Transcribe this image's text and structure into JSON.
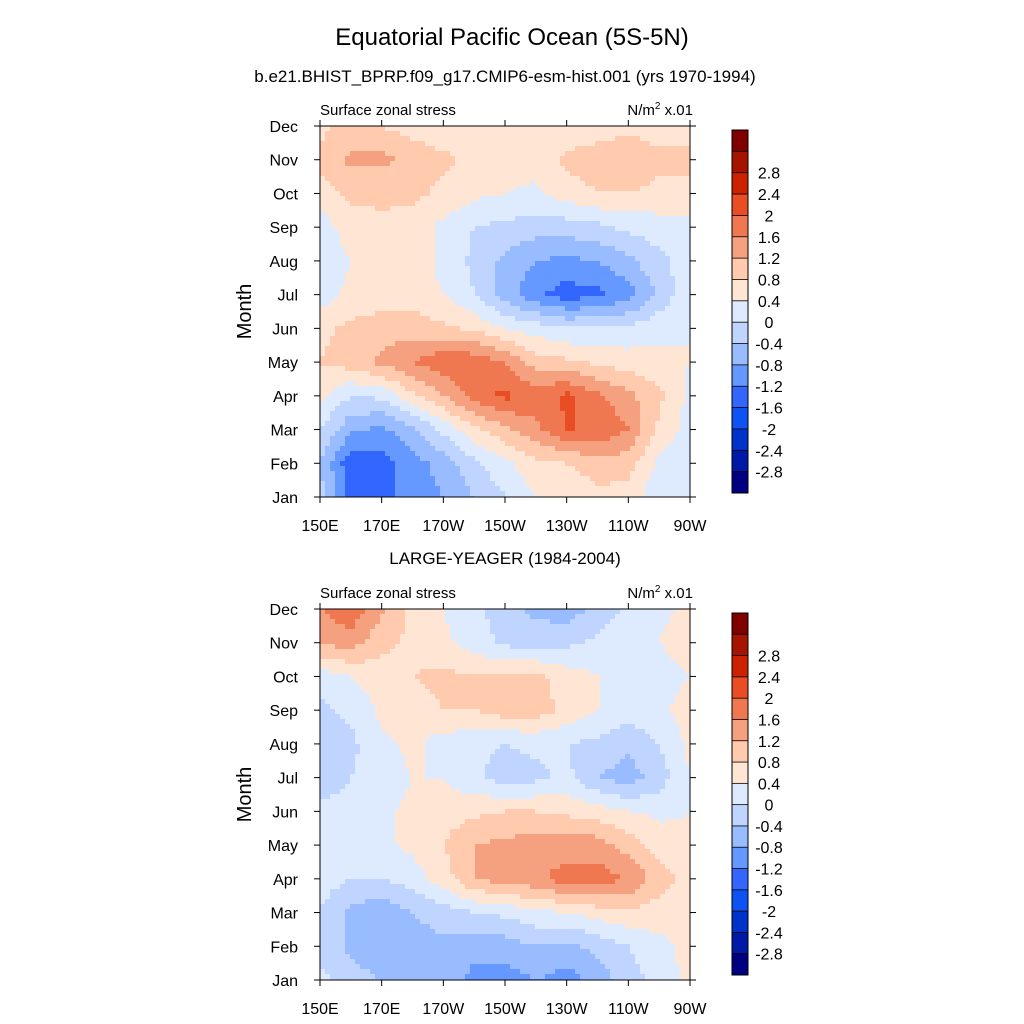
{
  "main_title": "Equatorial Pacific Ocean (5S-5N)",
  "panel_titles": [
    "b.e21.BHIST_BPRP.f09_g17.CMIP6-esm-hist.001 (yrs 1970-1994)",
    "LARGE-YEAGER (1984-2004)"
  ],
  "colors": {
    "levels": [
      "#000080",
      "#0019a6",
      "#0033cc",
      "#0d52f2",
      "#3366ff",
      "#6699ff",
      "#99bbff",
      "#bfd4ff",
      "#deebff",
      "#ffe6d4",
      "#ffcaae",
      "#f5a17f",
      "#f07850",
      "#e84d24",
      "#cc2200",
      "#a61400",
      "#800000"
    ]
  },
  "chart_data": [
    {
      "type": "heatmap",
      "left_label": "Surface zonal stress",
      "units_prefix": "N/m",
      "units_exp": "2",
      "units_suffix": " x.01",
      "ylabel": "Month",
      "x_ticks": [
        "150E",
        "170E",
        "170W",
        "150W",
        "130W",
        "110W",
        "90W"
      ],
      "y_ticks": [
        "Jan",
        "Feb",
        "Mar",
        "Apr",
        "May",
        "Jun",
        "Jul",
        "Aug",
        "Sep",
        "Oct",
        "Nov",
        "Dec"
      ],
      "colorbar_labels": [
        "2.8",
        "2.4",
        "2",
        "1.6",
        "1.2",
        "0.8",
        "0.4",
        "0",
        "-0.4",
        "-0.8",
        "-1.2",
        "-1.6",
        "-2",
        "-2.4",
        "-2.8"
      ],
      "x_values": [
        150,
        160,
        170,
        180,
        190,
        200,
        210,
        220,
        230,
        240,
        250,
        260,
        270
      ],
      "grid": [
        [
          -0.6,
          -1.8,
          -1.7,
          -1.5,
          -1.2,
          -0.8,
          -0.4,
          0.0,
          0.1,
          0.3,
          0.2,
          -0.3,
          -0.3
        ],
        [
          -0.8,
          -1.9,
          -1.8,
          -1.4,
          -1.0,
          -0.5,
          -0.1,
          0.3,
          0.4,
          0.6,
          0.6,
          -0.1,
          -0.3
        ],
        [
          -0.4,
          -1.1,
          -1.3,
          -0.9,
          -0.3,
          0.3,
          0.7,
          1.1,
          1.6,
          1.6,
          1.2,
          0.3,
          -0.2
        ],
        [
          0.1,
          -0.4,
          -0.3,
          0.3,
          0.8,
          1.4,
          1.7,
          1.4,
          1.7,
          1.3,
          0.9,
          0.5,
          -0.1
        ],
        [
          0.4,
          0.6,
          0.9,
          1.2,
          1.5,
          1.5,
          1.2,
          0.6,
          0.5,
          0.3,
          0.2,
          0.1,
          0.0
        ],
        [
          0.3,
          0.5,
          0.6,
          0.6,
          0.5,
          0.3,
          0.0,
          -0.2,
          -0.4,
          -0.4,
          -0.3,
          -0.1,
          0.0
        ],
        [
          -0.2,
          0.1,
          0.2,
          0.2,
          0.0,
          -0.4,
          -1.0,
          -1.5,
          -1.8,
          -1.7,
          -1.4,
          -0.7,
          -0.1
        ],
        [
          -0.3,
          0.0,
          0.2,
          0.2,
          -0.1,
          -0.5,
          -0.9,
          -1.2,
          -1.3,
          -1.2,
          -0.9,
          -0.5,
          -0.2
        ],
        [
          -0.2,
          0.2,
          0.3,
          0.2,
          -0.1,
          -0.4,
          -0.5,
          -0.6,
          -0.6,
          -0.5,
          -0.3,
          -0.2,
          -0.1
        ],
        [
          0.2,
          0.5,
          0.5,
          0.5,
          0.3,
          0.1,
          0.0,
          -0.1,
          0.2,
          0.4,
          0.4,
          0.3,
          0.3
        ],
        [
          0.5,
          0.9,
          0.9,
          0.7,
          0.5,
          0.3,
          0.2,
          0.2,
          0.5,
          0.6,
          0.7,
          0.5,
          0.5
        ],
        [
          0.3,
          0.5,
          0.4,
          0.2,
          0.1,
          0.0,
          0.0,
          0.0,
          0.1,
          0.2,
          0.3,
          0.2,
          0.2
        ]
      ]
    },
    {
      "type": "heatmap",
      "left_label": "Surface zonal stress",
      "units_prefix": "N/m",
      "units_exp": "2",
      "units_suffix": " x.01",
      "ylabel": "Month",
      "x_ticks": [
        "150E",
        "170E",
        "170W",
        "150W",
        "130W",
        "110W",
        "90W"
      ],
      "y_ticks": [
        "Jan",
        "Feb",
        "Mar",
        "Apr",
        "May",
        "Jun",
        "Jul",
        "Aug",
        "Sep",
        "Oct",
        "Nov",
        "Dec"
      ],
      "colorbar_labels": [
        "2.8",
        "2.4",
        "2",
        "1.6",
        "1.2",
        "0.8",
        "0.4",
        "0",
        "-0.4",
        "-0.8",
        "-1.2",
        "-1.6",
        "-2",
        "-2.4",
        "-2.8"
      ],
      "x_values": [
        150,
        160,
        170,
        180,
        190,
        200,
        210,
        220,
        230,
        240,
        250,
        260,
        270
      ],
      "grid": [
        [
          -0.3,
          -0.6,
          -0.8,
          -0.9,
          -1.0,
          -1.3,
          -1.4,
          -1.2,
          -1.4,
          -1.0,
          -0.6,
          -0.2,
          0.1
        ],
        [
          -0.5,
          -0.9,
          -1.2,
          -1.0,
          -0.9,
          -1.1,
          -1.0,
          -0.8,
          -0.9,
          -0.7,
          -0.4,
          -0.1,
          0.1
        ],
        [
          -0.4,
          -0.9,
          -1.1,
          -0.8,
          -0.6,
          -0.4,
          -0.3,
          -0.1,
          0.0,
          0.2,
          0.3,
          0.2,
          0.1
        ],
        [
          -0.2,
          -0.4,
          -0.4,
          -0.2,
          0.2,
          0.8,
          1.0,
          1.1,
          1.4,
          1.4,
          1.2,
          0.6,
          0.2
        ],
        [
          -0.1,
          -0.2,
          -0.1,
          0.1,
          0.4,
          0.8,
          0.9,
          1.0,
          1.0,
          1.0,
          0.6,
          0.2,
          0.1
        ],
        [
          -0.3,
          -0.3,
          -0.1,
          0.1,
          0.2,
          0.3,
          0.4,
          0.4,
          0.3,
          0.2,
          0.0,
          -0.1,
          0.0
        ],
        [
          -0.6,
          -0.4,
          -0.2,
          0.0,
          0.0,
          -0.3,
          -0.6,
          -0.5,
          -0.3,
          -0.8,
          -1.0,
          -0.6,
          0.0
        ],
        [
          -0.8,
          -0.5,
          -0.1,
          0.1,
          -0.2,
          -0.3,
          -0.4,
          -0.3,
          -0.4,
          -0.5,
          -0.7,
          -0.4,
          0.1
        ],
        [
          -0.5,
          -0.3,
          0.1,
          0.2,
          0.4,
          0.4,
          0.6,
          0.6,
          0.3,
          0.0,
          -0.2,
          -0.1,
          0.2
        ],
        [
          -0.2,
          0.0,
          0.2,
          0.4,
          0.5,
          0.4,
          0.5,
          0.5,
          0.2,
          0.0,
          -0.2,
          -0.2,
          0.0
        ],
        [
          0.8,
          1.0,
          0.5,
          0.3,
          0.1,
          -0.2,
          -0.5,
          -0.6,
          -0.5,
          -0.3,
          -0.1,
          0.0,
          0.2
        ],
        [
          1.2,
          1.5,
          0.9,
          0.3,
          0.0,
          -0.3,
          -0.6,
          -0.9,
          -1.0,
          -0.7,
          -0.3,
          -0.1,
          0.1
        ]
      ]
    }
  ]
}
